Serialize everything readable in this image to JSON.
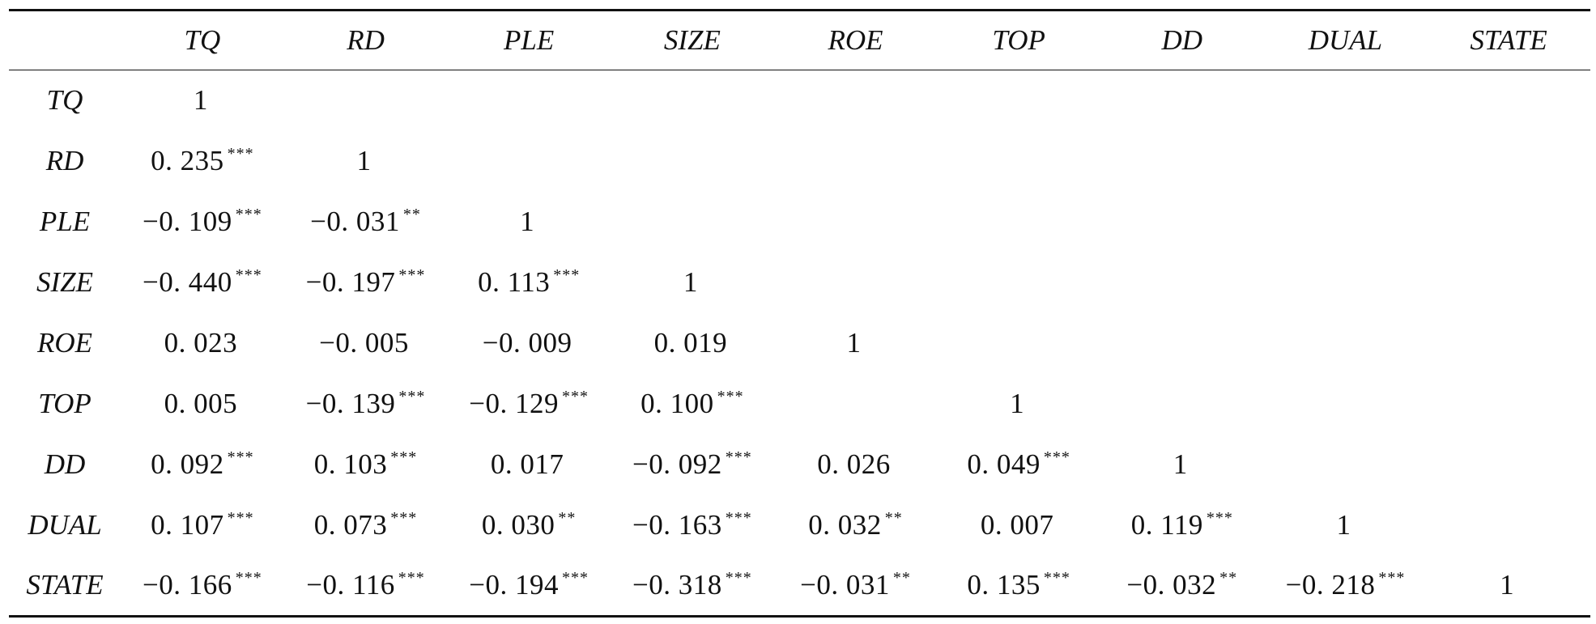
{
  "table": {
    "columns": [
      "",
      "TQ",
      "RD",
      "PLE",
      "SIZE",
      "ROE",
      "TOP",
      "DD",
      "DUAL",
      "STATE"
    ],
    "rows": [
      {
        "label": "TQ",
        "cells": [
          {
            "value": "1",
            "stars": ""
          },
          {
            "value": "",
            "stars": ""
          },
          {
            "value": "",
            "stars": ""
          },
          {
            "value": "",
            "stars": ""
          },
          {
            "value": "",
            "stars": ""
          },
          {
            "value": "",
            "stars": ""
          },
          {
            "value": "",
            "stars": ""
          },
          {
            "value": "",
            "stars": ""
          },
          {
            "value": "",
            "stars": ""
          }
        ]
      },
      {
        "label": "RD",
        "cells": [
          {
            "value": "0. 235",
            "stars": "***"
          },
          {
            "value": "1",
            "stars": ""
          },
          {
            "value": "",
            "stars": ""
          },
          {
            "value": "",
            "stars": ""
          },
          {
            "value": "",
            "stars": ""
          },
          {
            "value": "",
            "stars": ""
          },
          {
            "value": "",
            "stars": ""
          },
          {
            "value": "",
            "stars": ""
          },
          {
            "value": "",
            "stars": ""
          }
        ]
      },
      {
        "label": "PLE",
        "cells": [
          {
            "value": "−0. 109",
            "stars": "***"
          },
          {
            "value": "−0. 031",
            "stars": "**"
          },
          {
            "value": "1",
            "stars": ""
          },
          {
            "value": "",
            "stars": ""
          },
          {
            "value": "",
            "stars": ""
          },
          {
            "value": "",
            "stars": ""
          },
          {
            "value": "",
            "stars": ""
          },
          {
            "value": "",
            "stars": ""
          },
          {
            "value": "",
            "stars": ""
          }
        ]
      },
      {
        "label": "SIZE",
        "cells": [
          {
            "value": "−0. 440",
            "stars": "***"
          },
          {
            "value": "−0. 197",
            "stars": "***"
          },
          {
            "value": "0. 113",
            "stars": "***"
          },
          {
            "value": "1",
            "stars": ""
          },
          {
            "value": "",
            "stars": ""
          },
          {
            "value": "",
            "stars": ""
          },
          {
            "value": "",
            "stars": ""
          },
          {
            "value": "",
            "stars": ""
          },
          {
            "value": "",
            "stars": ""
          }
        ]
      },
      {
        "label": "ROE",
        "cells": [
          {
            "value": "0. 023",
            "stars": ""
          },
          {
            "value": "−0. 005",
            "stars": ""
          },
          {
            "value": "−0. 009",
            "stars": ""
          },
          {
            "value": "0. 019",
            "stars": ""
          },
          {
            "value": "1",
            "stars": ""
          },
          {
            "value": "",
            "stars": ""
          },
          {
            "value": "",
            "stars": ""
          },
          {
            "value": "",
            "stars": ""
          },
          {
            "value": "",
            "stars": ""
          }
        ]
      },
      {
        "label": "TOP",
        "cells": [
          {
            "value": "0. 005",
            "stars": ""
          },
          {
            "value": "−0. 139",
            "stars": "***"
          },
          {
            "value": "−0. 129",
            "stars": "***"
          },
          {
            "value": "0. 100",
            "stars": "***"
          },
          {
            "value": "",
            "stars": ""
          },
          {
            "value": "1",
            "stars": ""
          },
          {
            "value": "",
            "stars": ""
          },
          {
            "value": "",
            "stars": ""
          },
          {
            "value": "",
            "stars": ""
          }
        ]
      },
      {
        "label": "DD",
        "cells": [
          {
            "value": "0. 092",
            "stars": "***"
          },
          {
            "value": "0. 103",
            "stars": "***"
          },
          {
            "value": "0. 017",
            "stars": ""
          },
          {
            "value": "−0. 092",
            "stars": "***"
          },
          {
            "value": "0. 026",
            "stars": ""
          },
          {
            "value": "0. 049",
            "stars": "***"
          },
          {
            "value": "1",
            "stars": ""
          },
          {
            "value": "",
            "stars": ""
          },
          {
            "value": "",
            "stars": ""
          }
        ]
      },
      {
        "label": "DUAL",
        "cells": [
          {
            "value": "0. 107",
            "stars": "***"
          },
          {
            "value": "0. 073",
            "stars": "***"
          },
          {
            "value": "0. 030",
            "stars": "**"
          },
          {
            "value": "−0. 163",
            "stars": "***"
          },
          {
            "value": "0. 032",
            "stars": "**"
          },
          {
            "value": "0. 007",
            "stars": ""
          },
          {
            "value": "0. 119",
            "stars": "***"
          },
          {
            "value": "1",
            "stars": ""
          },
          {
            "value": "",
            "stars": ""
          }
        ]
      },
      {
        "label": "STATE",
        "cells": [
          {
            "value": "−0. 166",
            "stars": "***"
          },
          {
            "value": "−0. 116",
            "stars": "***"
          },
          {
            "value": "−0. 194",
            "stars": "***"
          },
          {
            "value": "−0. 318",
            "stars": "***"
          },
          {
            "value": "−0. 031",
            "stars": "**"
          },
          {
            "value": "0. 135",
            "stars": "***"
          },
          {
            "value": "−0. 032",
            "stars": "**"
          },
          {
            "value": "−0. 218",
            "stars": "***"
          },
          {
            "value": "1",
            "stars": ""
          }
        ]
      }
    ]
  }
}
